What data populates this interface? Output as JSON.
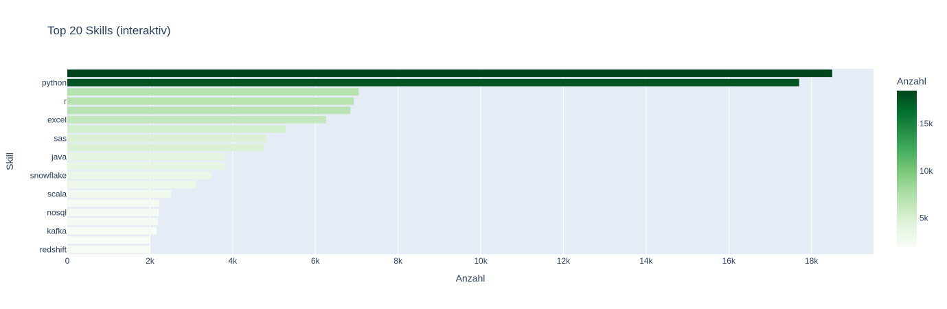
{
  "chart_data": {
    "type": "bar",
    "orientation": "horizontal",
    "title": "Top 20 Skills (interaktiv)",
    "xlabel": "Anzahl",
    "ylabel": "Skill",
    "xlim": [
      0,
      19500
    ],
    "x_ticks": [
      0,
      2000,
      4000,
      6000,
      8000,
      10000,
      12000,
      14000,
      16000,
      18000
    ],
    "x_tick_labels": [
      "0",
      "2k",
      "4k",
      "6k",
      "8k",
      "10k",
      "12k",
      "14k",
      "16k",
      "18k"
    ],
    "categories_top_to_bottom": [
      "",
      "python",
      "",
      "r",
      "",
      "excel",
      "",
      "sas",
      "",
      "java",
      "",
      "snowflake",
      "",
      "scala",
      "",
      "nosql",
      "",
      "kafka",
      "",
      "redshift"
    ],
    "values_top_to_bottom": [
      18500,
      17700,
      7050,
      6930,
      6850,
      6260,
      5280,
      4800,
      4750,
      3830,
      3820,
      3490,
      3120,
      2510,
      2220,
      2210,
      2190,
      2160,
      2000,
      1990
    ],
    "grid": true,
    "colorscale": "Greens",
    "colorbar": {
      "title": "Anzahl",
      "range": [
        1990,
        18500
      ],
      "ticks": [
        5000,
        10000,
        15000
      ],
      "tick_labels": [
        "5k",
        "10k",
        "15k"
      ]
    }
  }
}
